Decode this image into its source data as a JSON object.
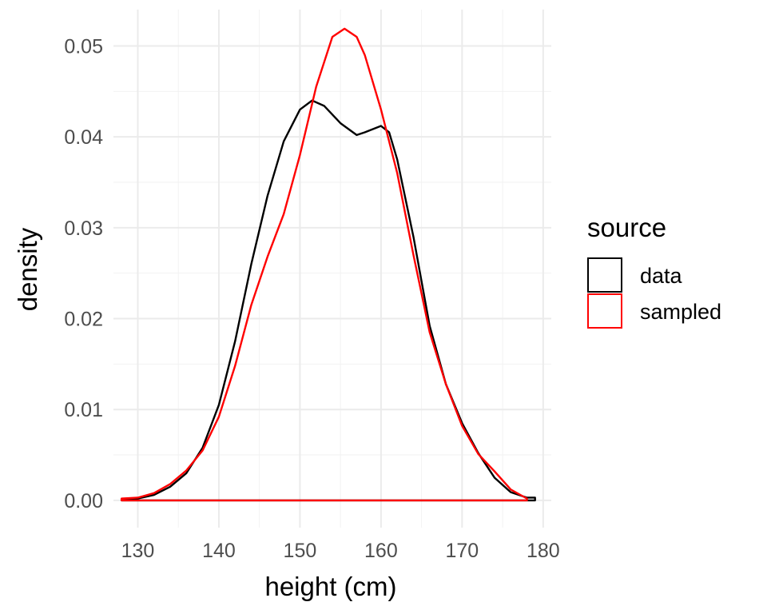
{
  "chart_data": {
    "type": "line",
    "subtype": "density",
    "title": "",
    "xlabel": "height (cm)",
    "ylabel": "density",
    "xlim": [
      127,
      181
    ],
    "ylim": [
      -0.003,
      0.054
    ],
    "x_ticks": [
      130,
      140,
      150,
      160,
      170,
      180
    ],
    "y_ticks": [
      0.0,
      0.01,
      0.02,
      0.03,
      0.04,
      0.05
    ],
    "x_tick_labels": [
      "130",
      "140",
      "150",
      "160",
      "170",
      "180"
    ],
    "y_tick_labels": [
      "0.00",
      "0.01",
      "0.02",
      "0.03",
      "0.04",
      "0.05"
    ],
    "grid": true,
    "legend": {
      "title": "source",
      "position": "right"
    },
    "series": [
      {
        "name": "data",
        "color": "#000000",
        "x": [
          128,
          130,
          132,
          134,
          136,
          138,
          140,
          142,
          144,
          146,
          148,
          150,
          151.5,
          153,
          155,
          157,
          158,
          160,
          161,
          162,
          164,
          166,
          168,
          170,
          172,
          174,
          176,
          178,
          179
        ],
        "y": [
          0.0001,
          0.0002,
          0.0006,
          0.0015,
          0.003,
          0.0058,
          0.0105,
          0.0175,
          0.026,
          0.0335,
          0.0395,
          0.043,
          0.044,
          0.0434,
          0.0415,
          0.0402,
          0.0405,
          0.0412,
          0.0405,
          0.0375,
          0.029,
          0.0192,
          0.0128,
          0.0085,
          0.0052,
          0.0025,
          0.0009,
          0.0003,
          0.0003
        ]
      },
      {
        "name": "sampled",
        "color": "#ff0000",
        "x": [
          128,
          130,
          132,
          134,
          136,
          138,
          140,
          142,
          144,
          146,
          148,
          150,
          152,
          154,
          155.5,
          157,
          158,
          160,
          162,
          164,
          166,
          168,
          170,
          172,
          174,
          176,
          178
        ],
        "y": [
          0.0002,
          0.0003,
          0.0008,
          0.0018,
          0.0033,
          0.0055,
          0.0092,
          0.0148,
          0.0215,
          0.0268,
          0.0315,
          0.038,
          0.0455,
          0.051,
          0.0519,
          0.051,
          0.049,
          0.043,
          0.036,
          0.027,
          0.0185,
          0.0128,
          0.0082,
          0.0051,
          0.0032,
          0.0012,
          0.0002
        ]
      }
    ]
  }
}
